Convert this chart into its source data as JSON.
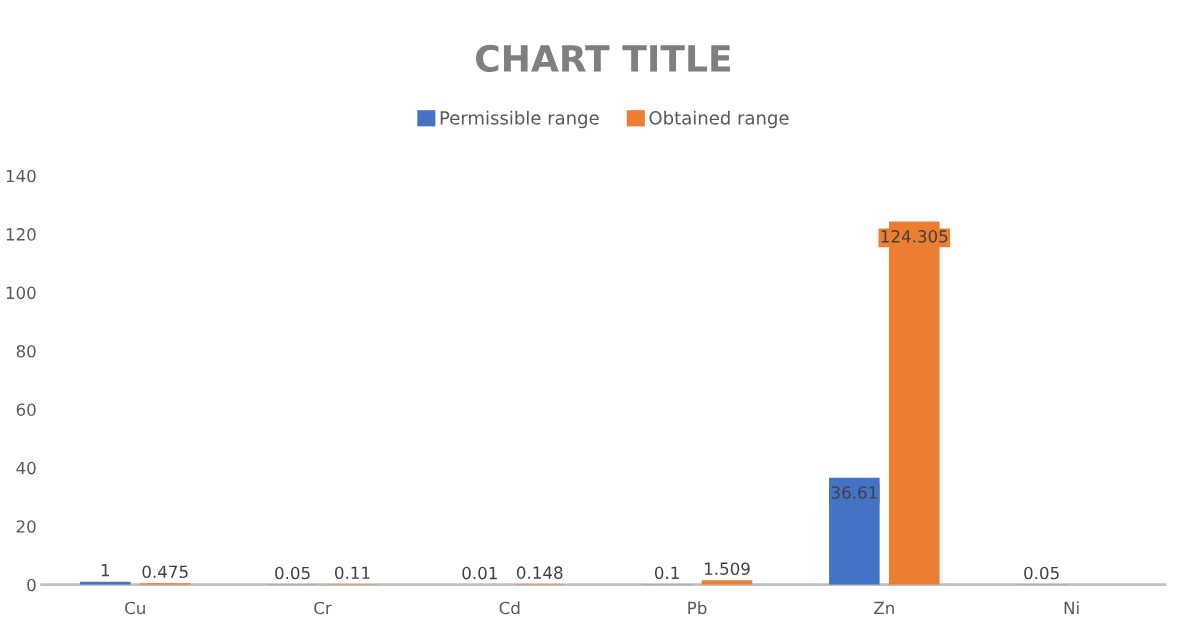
{
  "chart_data": {
    "type": "bar",
    "title": "CHART TITLE",
    "categories": [
      "Cu",
      "Cr",
      "Cd",
      "Pb",
      "Zn",
      "Ni"
    ],
    "series": [
      {
        "name": "Permissible range",
        "color": "#4472c4",
        "values": [
          1,
          0.05,
          0.01,
          0.1,
          36.61,
          0.05
        ]
      },
      {
        "name": "Obtained range",
        "color": "#ed7d31",
        "values": [
          0.475,
          0.11,
          0.148,
          1.509,
          124.305,
          null
        ]
      }
    ],
    "ylim": [
      0,
      140
    ],
    "yticks": [
      0,
      20,
      40,
      60,
      80,
      100,
      120,
      140
    ],
    "grid": false,
    "legend": "top",
    "data_labels": true
  }
}
